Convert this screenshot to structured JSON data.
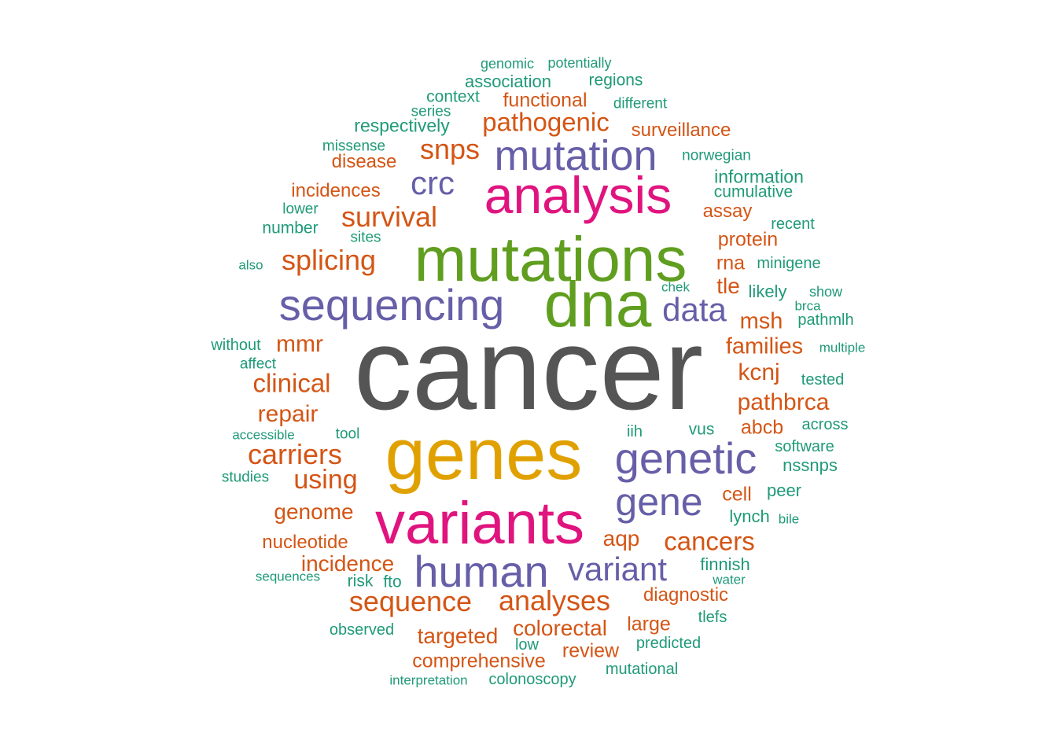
{
  "chart_data": {
    "type": "wordcloud",
    "words": [
      {
        "text": "cancer",
        "weight": 1.0,
        "color": "#555555"
      },
      {
        "text": "genes",
        "weight": 0.55,
        "color": "#e0a100"
      },
      {
        "text": "mutations",
        "weight": 0.55,
        "color": "#5f9e1f"
      },
      {
        "text": "dna",
        "weight": 0.53,
        "color": "#5f9e1f"
      },
      {
        "text": "variants",
        "weight": 0.5,
        "color": "#e0147e"
      },
      {
        "text": "analysis",
        "weight": 0.44,
        "color": "#e0147e"
      },
      {
        "text": "mutation",
        "weight": 0.38,
        "color": "#665fa8"
      },
      {
        "text": "sequencing",
        "weight": 0.38,
        "color": "#665fa8"
      },
      {
        "text": "genetic",
        "weight": 0.38,
        "color": "#665fa8"
      },
      {
        "text": "human",
        "weight": 0.38,
        "color": "#665fa8"
      },
      {
        "text": "gene",
        "weight": 0.34,
        "color": "#665fa8"
      },
      {
        "text": "variant",
        "weight": 0.3,
        "color": "#665fa8"
      },
      {
        "text": "data",
        "weight": 0.28,
        "color": "#665fa8"
      },
      {
        "text": "crc",
        "weight": 0.28,
        "color": "#665fa8"
      },
      {
        "text": "snps",
        "weight": 0.24,
        "color": "#d45515"
      },
      {
        "text": "survival",
        "weight": 0.24,
        "color": "#d45515"
      },
      {
        "text": "splicing",
        "weight": 0.24,
        "color": "#d45515"
      },
      {
        "text": "carriers",
        "weight": 0.24,
        "color": "#d45515"
      },
      {
        "text": "sequence",
        "weight": 0.24,
        "color": "#d45515"
      },
      {
        "text": "analyses",
        "weight": 0.24,
        "color": "#d45515"
      },
      {
        "text": "using",
        "weight": 0.22,
        "color": "#d45515"
      },
      {
        "text": "pathogenic",
        "weight": 0.22,
        "color": "#d45515"
      },
      {
        "text": "clinical",
        "weight": 0.22,
        "color": "#d45515"
      },
      {
        "text": "cancers",
        "weight": 0.22,
        "color": "#d45515"
      },
      {
        "text": "repair",
        "weight": 0.2,
        "color": "#d45515"
      },
      {
        "text": "mmr",
        "weight": 0.2,
        "color": "#d45515"
      },
      {
        "text": "kcnj",
        "weight": 0.2,
        "color": "#d45515"
      },
      {
        "text": "pathbrca",
        "weight": 0.2,
        "color": "#d45515"
      },
      {
        "text": "families",
        "weight": 0.2,
        "color": "#d45515"
      },
      {
        "text": "msh",
        "weight": 0.2,
        "color": "#d45515"
      },
      {
        "text": "incidence",
        "weight": 0.19,
        "color": "#d45515"
      },
      {
        "text": "colorectal",
        "weight": 0.19,
        "color": "#d45515"
      },
      {
        "text": "targeted",
        "weight": 0.19,
        "color": "#d45515"
      },
      {
        "text": "genome",
        "weight": 0.19,
        "color": "#d45515"
      },
      {
        "text": "tle",
        "weight": 0.19,
        "color": "#d45515"
      },
      {
        "text": "aqp",
        "weight": 0.18,
        "color": "#d45515"
      },
      {
        "text": "functional",
        "weight": 0.17,
        "color": "#d45515"
      },
      {
        "text": "protein",
        "weight": 0.17,
        "color": "#d45515"
      },
      {
        "text": "rna",
        "weight": 0.17,
        "color": "#d45515"
      },
      {
        "text": "cell",
        "weight": 0.17,
        "color": "#d45515"
      },
      {
        "text": "abcb",
        "weight": 0.17,
        "color": "#d45515"
      },
      {
        "text": "comprehensive",
        "weight": 0.17,
        "color": "#d45515"
      },
      {
        "text": "review",
        "weight": 0.17,
        "color": "#d45515"
      },
      {
        "text": "large",
        "weight": 0.17,
        "color": "#d45515"
      },
      {
        "text": "diagnostic",
        "weight": 0.16,
        "color": "#d45515"
      },
      {
        "text": "nucleotide",
        "weight": 0.16,
        "color": "#d45515"
      },
      {
        "text": "surveillance",
        "weight": 0.16,
        "color": "#d45515"
      },
      {
        "text": "incidences",
        "weight": 0.16,
        "color": "#d45515"
      },
      {
        "text": "disease",
        "weight": 0.16,
        "color": "#d45515"
      },
      {
        "text": "assay",
        "weight": 0.16,
        "color": "#d45515"
      },
      {
        "text": "information",
        "weight": 0.15,
        "color": "#1f9a77"
      },
      {
        "text": "respectively",
        "weight": 0.15,
        "color": "#1f9a77"
      },
      {
        "text": "association",
        "weight": 0.15,
        "color": "#1f9a77"
      },
      {
        "text": "lynch",
        "weight": 0.15,
        "color": "#1f9a77"
      },
      {
        "text": "finnish",
        "weight": 0.15,
        "color": "#1f9a77"
      },
      {
        "text": "peer",
        "weight": 0.15,
        "color": "#1f9a77"
      },
      {
        "text": "likely",
        "weight": 0.15,
        "color": "#1f9a77"
      },
      {
        "text": "nssnps",
        "weight": 0.15,
        "color": "#1f9a77"
      },
      {
        "text": "context",
        "weight": 0.14,
        "color": "#1f9a77"
      },
      {
        "text": "regions",
        "weight": 0.14,
        "color": "#1f9a77"
      },
      {
        "text": "cumulative",
        "weight": 0.14,
        "color": "#1f9a77"
      },
      {
        "text": "number",
        "weight": 0.14,
        "color": "#1f9a77"
      },
      {
        "text": "vus",
        "weight": 0.14,
        "color": "#1f9a77"
      },
      {
        "text": "risk",
        "weight": 0.14,
        "color": "#1f9a77"
      },
      {
        "text": "fto",
        "weight": 0.14,
        "color": "#1f9a77"
      },
      {
        "text": "without",
        "weight": 0.14,
        "color": "#1f9a77"
      },
      {
        "text": "tested",
        "weight": 0.14,
        "color": "#1f9a77"
      },
      {
        "text": "software",
        "weight": 0.14,
        "color": "#1f9a77"
      },
      {
        "text": "across",
        "weight": 0.14,
        "color": "#1f9a77"
      },
      {
        "text": "colonoscopy",
        "weight": 0.14,
        "color": "#1f9a77"
      },
      {
        "text": "mutational",
        "weight": 0.14,
        "color": "#1f9a77"
      },
      {
        "text": "predicted",
        "weight": 0.14,
        "color": "#1f9a77"
      },
      {
        "text": "observed",
        "weight": 0.14,
        "color": "#1f9a77"
      },
      {
        "text": "tlefs",
        "weight": 0.14,
        "color": "#1f9a77"
      },
      {
        "text": "recent",
        "weight": 0.14,
        "color": "#1f9a77"
      },
      {
        "text": "minigene",
        "weight": 0.14,
        "color": "#1f9a77"
      },
      {
        "text": "pathmlh",
        "weight": 0.14,
        "color": "#1f9a77"
      },
      {
        "text": "iih",
        "weight": 0.14,
        "color": "#1f9a77"
      },
      {
        "text": "low",
        "weight": 0.14,
        "color": "#1f9a77"
      },
      {
        "text": "norwegian",
        "weight": 0.13,
        "color": "#1f9a77"
      },
      {
        "text": "different",
        "weight": 0.13,
        "color": "#1f9a77"
      },
      {
        "text": "missense",
        "weight": 0.13,
        "color": "#1f9a77"
      },
      {
        "text": "lower",
        "weight": 0.13,
        "color": "#1f9a77"
      },
      {
        "text": "sites",
        "weight": 0.13,
        "color": "#1f9a77"
      },
      {
        "text": "series",
        "weight": 0.13,
        "color": "#1f9a77"
      },
      {
        "text": "genomic",
        "weight": 0.13,
        "color": "#1f9a77"
      },
      {
        "text": "potentially",
        "weight": 0.13,
        "color": "#1f9a77"
      },
      {
        "text": "affect",
        "weight": 0.13,
        "color": "#1f9a77"
      },
      {
        "text": "tool",
        "weight": 0.13,
        "color": "#1f9a77"
      },
      {
        "text": "studies",
        "weight": 0.13,
        "color": "#1f9a77"
      },
      {
        "text": "show",
        "weight": 0.13,
        "color": "#1f9a77"
      },
      {
        "text": "chek",
        "weight": 0.12,
        "color": "#1f9a77"
      },
      {
        "text": "brca",
        "weight": 0.12,
        "color": "#1f9a77"
      },
      {
        "text": "multiple",
        "weight": 0.12,
        "color": "#1f9a77"
      },
      {
        "text": "also",
        "weight": 0.12,
        "color": "#1f9a77"
      },
      {
        "text": "accessible",
        "weight": 0.12,
        "color": "#1f9a77"
      },
      {
        "text": "sequences",
        "weight": 0.12,
        "color": "#1f9a77"
      },
      {
        "text": "water",
        "weight": 0.12,
        "color": "#1f9a77"
      },
      {
        "text": "bile",
        "weight": 0.12,
        "color": "#1f9a77"
      },
      {
        "text": "interpretation",
        "weight": 0.12,
        "color": "#1f9a77"
      }
    ]
  }
}
